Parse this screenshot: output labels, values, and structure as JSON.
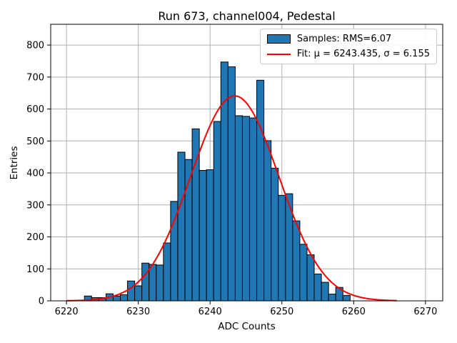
{
  "chart_data": {
    "type": "histogram",
    "title": "Run 673, channel004, Pedestal",
    "xlabel": "ADC Counts",
    "ylabel": "Entries",
    "bin_width": 1,
    "bin_centers": [
      6223,
      6224,
      6225,
      6226,
      6227,
      6228,
      6229,
      6230,
      6231,
      6232,
      6233,
      6234,
      6235,
      6236,
      6237,
      6238,
      6239,
      6240,
      6241,
      6242,
      6243,
      6244,
      6245,
      6246,
      6247,
      6248,
      6249,
      6250,
      6251,
      6252,
      6253,
      6254,
      6255,
      6256,
      6257,
      6258,
      6259
    ],
    "counts": [
      15,
      10,
      10,
      22,
      15,
      19,
      62,
      47,
      118,
      114,
      112,
      181,
      311,
      465,
      442,
      538,
      408,
      410,
      561,
      747,
      732,
      579,
      577,
      572,
      690,
      501,
      415,
      330,
      335,
      250,
      177,
      144,
      84,
      58,
      21,
      42,
      17
    ],
    "x_ticks": [
      6220,
      6230,
      6240,
      6250,
      6260,
      6270
    ],
    "y_ticks": [
      0,
      100,
      200,
      300,
      400,
      500,
      600,
      700,
      800
    ],
    "xlim": [
      6217.8,
      6272.4
    ],
    "ylim": [
      0,
      865
    ],
    "grid": true,
    "grid_color": "#b0b0b0",
    "bar_color": "#1f77b4",
    "bar_edge_color": "#000000",
    "legend": {
      "position": "upper right",
      "samples_label": "Samples: RMS=6.07",
      "fit_label": "Fit: μ = 6243.435, σ = 6.155"
    },
    "fit": {
      "mu": 6243.435,
      "sigma": 6.155,
      "amplitude": 641,
      "color": "#ff0000",
      "curve_range": [
        6220,
        6266
      ]
    }
  }
}
